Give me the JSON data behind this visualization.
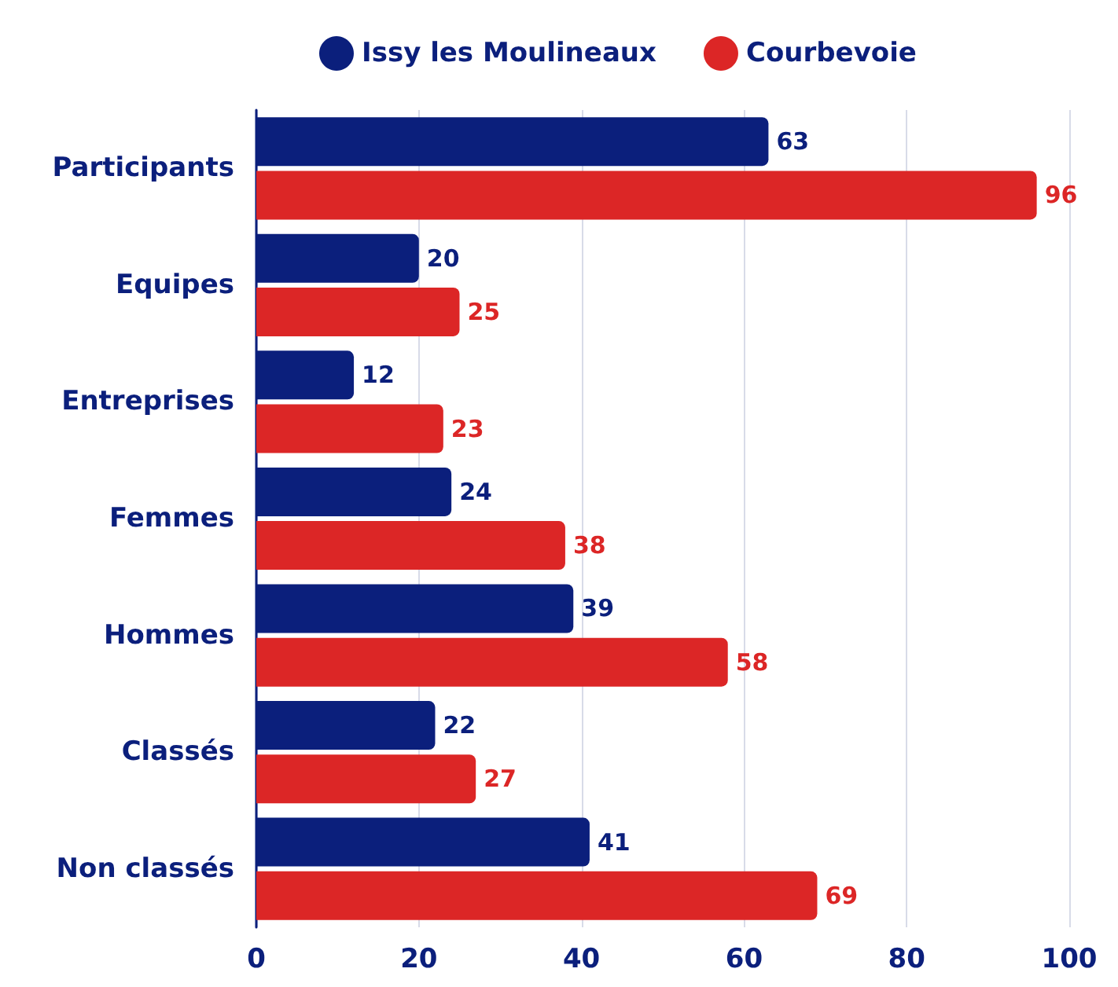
{
  "chart_data": {
    "type": "bar",
    "orientation": "horizontal",
    "categories": [
      "Participants",
      "Equipes",
      "Entreprises",
      "Femmes",
      "Hommes",
      "Classés",
      "Non classés"
    ],
    "series": [
      {
        "name": "Issy les Moulineaux",
        "color": "#0b1f7c",
        "values": [
          63,
          20,
          12,
          24,
          39,
          22,
          41
        ]
      },
      {
        "name": "Courbevoie",
        "color": "#dc2626",
        "values": [
          96,
          25,
          23,
          38,
          58,
          27,
          69
        ]
      }
    ],
    "xlim": [
      0,
      100
    ],
    "xticks": [
      0,
      20,
      40,
      60,
      80,
      100
    ],
    "grid": "x",
    "legend": "top",
    "data_labels": true
  }
}
